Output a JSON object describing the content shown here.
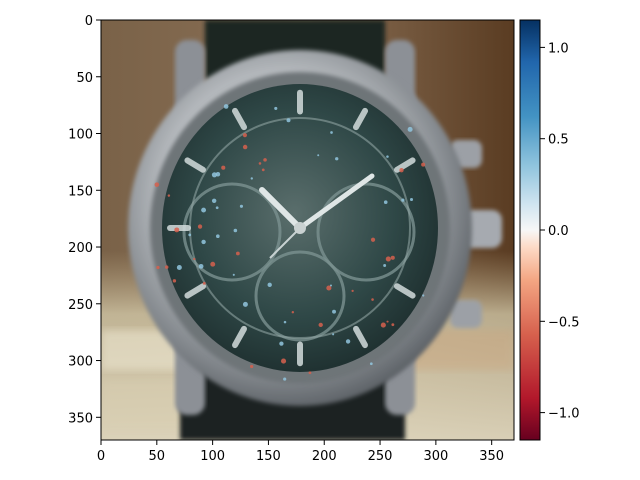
{
  "chart_data": {
    "type": "heatmap",
    "title": "",
    "xlabel": "",
    "ylabel": "",
    "xlim": [
      0,
      370
    ],
    "ylim": [
      370,
      0
    ],
    "xticks": [
      0,
      50,
      100,
      150,
      200,
      250,
      300,
      350
    ],
    "yticks": [
      0,
      50,
      100,
      150,
      200,
      250,
      300,
      350
    ],
    "colorbar": {
      "colormap": "RdBu",
      "vmin": -1.15,
      "vmax": 1.15,
      "ticks": [
        -1.0,
        -0.5,
        0.0,
        0.5,
        1.0
      ],
      "tick_labels": [
        "−1.0",
        "−0.5",
        "0.0",
        "0.5",
        "1.0"
      ]
    },
    "image_content": "overlay of a wristwatch photo (dark dial chronograph with silver case and black leather strap) with saliency heatmap",
    "colors": {
      "background_warm": "#6b4e34",
      "case_silver": "#9a9ea4",
      "dial_dark": "#26403f",
      "strap": "#1e2422",
      "red_min": "#67001f",
      "blue_max": "#053061"
    }
  }
}
